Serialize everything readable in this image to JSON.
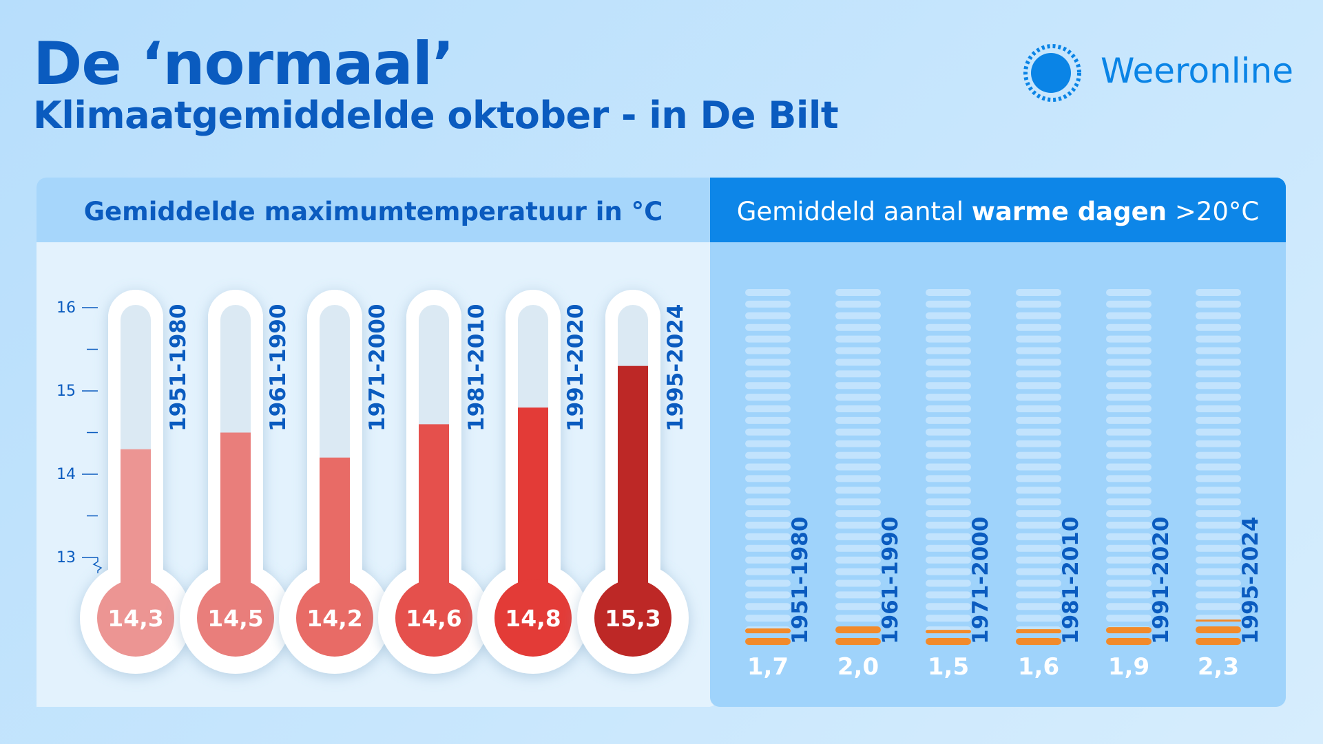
{
  "header": {
    "title": "De ‘normaal’",
    "subtitle": "Klimaatgemiddelde oktober - in De Bilt",
    "brand": "Weeronline",
    "brand_icon": "sun-icon"
  },
  "colors": {
    "title": "#0a5bbf",
    "brand": "#0a84e6",
    "left_panel": "#e3f2fd",
    "left_header": "#a6d6fb",
    "right_panel": "#9fd3fb",
    "right_header": "#0d86e8",
    "warm_day": "#f28a2a",
    "day_slot": "#c2e3fd",
    "thermo_fills": [
      "#ec9593",
      "#e97e7b",
      "#e86b66",
      "#e5504c",
      "#e33b37",
      "#bd2826"
    ]
  },
  "chart_data": [
    {
      "type": "bar",
      "title": "Gemiddelde maximumtemperatuur in °C",
      "categories": [
        "1951-1980",
        "1961-1990",
        "1971-2000",
        "1981-2010",
        "1991-2020",
        "1995-2024"
      ],
      "values": [
        14.3,
        14.5,
        14.2,
        14.6,
        14.8,
        15.3
      ],
      "value_labels": [
        "14,3",
        "14,5",
        "14,2",
        "14,6",
        "14,8",
        "15,3"
      ],
      "ylim": [
        13,
        16
      ],
      "yticks": [
        "13",
        "14",
        "15",
        "16"
      ],
      "axis_break": true,
      "style": "thermometer"
    },
    {
      "type": "bar",
      "title_parts": [
        "Gemiddeld aantal ",
        "warme dagen",
        " >20°C"
      ],
      "categories": [
        "1951-1980",
        "1961-1990",
        "1971-2000",
        "1981-2010",
        "1991-2020",
        "1995-2024"
      ],
      "values": [
        1.7,
        2.0,
        1.5,
        1.6,
        1.9,
        2.3
      ],
      "value_labels": [
        "1,7",
        "2,0",
        "1,5",
        "1,6",
        "1,9",
        "2,3"
      ],
      "ylim": [
        0,
        31
      ],
      "style": "day-stripes"
    }
  ]
}
